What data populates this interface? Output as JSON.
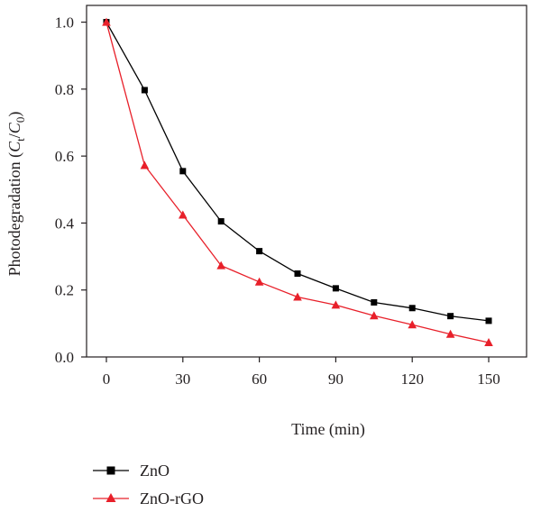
{
  "chart_data": {
    "type": "line",
    "xlabel": "Time (min)",
    "ylabel_parts": [
      "Photodegradation (",
      "C",
      "t",
      "/",
      "C",
      "0",
      ")"
    ],
    "xlim": [
      0,
      160
    ],
    "ylim": [
      0,
      1.05
    ],
    "xticks": [
      0,
      30,
      60,
      90,
      120,
      150
    ],
    "yticks": [
      0.0,
      0.2,
      0.4,
      0.6,
      0.8,
      1.0
    ],
    "xtick_labels": [
      "0",
      "30",
      "60",
      "90",
      "120",
      "150"
    ],
    "ytick_labels": [
      "0.0",
      "0.2",
      "0.4",
      "0.6",
      "0.8",
      "1.0"
    ],
    "x": [
      0,
      15,
      30,
      45,
      60,
      75,
      90,
      105,
      120,
      135,
      150
    ],
    "series": [
      {
        "name": "ZnO",
        "marker": "square",
        "color": "#000000",
        "values": [
          1.0,
          0.797,
          0.555,
          0.405,
          0.316,
          0.249,
          0.205,
          0.163,
          0.146,
          0.122,
          0.108
        ]
      },
      {
        "name": "ZnO-rGO",
        "marker": "triangle",
        "color": "#e8202a",
        "values": [
          1.0,
          0.572,
          0.424,
          0.273,
          0.224,
          0.179,
          0.155,
          0.123,
          0.096,
          0.068,
          0.043
        ]
      }
    ],
    "legend_position": "bottom-left",
    "grid": false
  }
}
